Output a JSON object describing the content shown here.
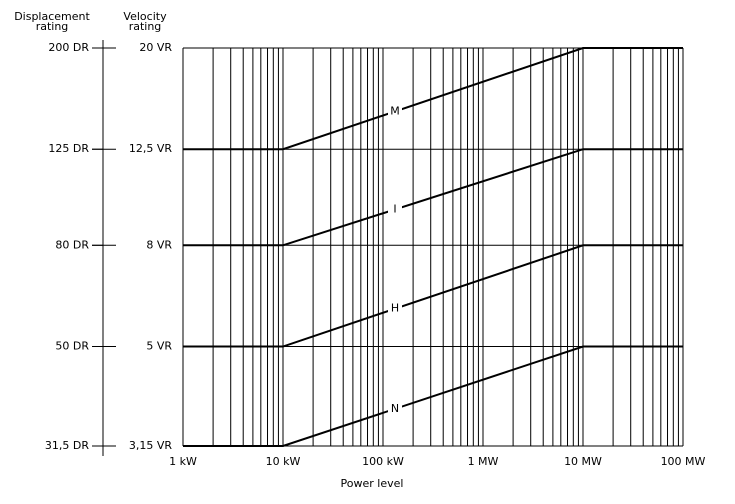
{
  "chart_data": {
    "type": "line",
    "xlabel": "Power level",
    "ylabel": "Velocity rating",
    "y2label": "Displacement rating",
    "xscale": "log",
    "yscale": "log",
    "xlim": [
      1,
      100000
    ],
    "xticks": [
      {
        "value": 1,
        "label": "1 kW"
      },
      {
        "value": 10,
        "label": "10 kW"
      },
      {
        "value": 100,
        "label": "100 kW"
      },
      {
        "value": 1000,
        "label": "1 MW"
      },
      {
        "value": 10000,
        "label": "10 MW"
      },
      {
        "value": 100000,
        "label": "100 MW"
      }
    ],
    "ylim": [
      3.15,
      20
    ],
    "yticks": [
      {
        "value": 3.15,
        "label": "3,15 VR"
      },
      {
        "value": 5,
        "label": "5 VR"
      },
      {
        "value": 8,
        "label": "8 VR"
      },
      {
        "value": 12.5,
        "label": "12,5 VR"
      },
      {
        "value": 20,
        "label": "20 VR"
      }
    ],
    "y2lim": [
      31.5,
      200
    ],
    "y2ticks": [
      {
        "value": 31.5,
        "label": "31,5 DR"
      },
      {
        "value": 50,
        "label": "50 DR"
      },
      {
        "value": 80,
        "label": "80 DR"
      },
      {
        "value": 125,
        "label": "125 DR"
      },
      {
        "value": 200,
        "label": "200 DR"
      }
    ],
    "grid": true,
    "minor_grid": true,
    "x": [
      1,
      10,
      10000,
      100000
    ],
    "series": [
      {
        "name": "N",
        "color": "#000000",
        "values": [
          3.15,
          3.15,
          5,
          5
        ]
      },
      {
        "name": "H",
        "color": "#000000",
        "values": [
          5,
          5,
          8,
          8
        ]
      },
      {
        "name": "I",
        "color": "#000000",
        "values": [
          8,
          8,
          12.5,
          12.5
        ]
      },
      {
        "name": "M",
        "color": "#000000",
        "values": [
          12.5,
          12.5,
          20,
          20
        ]
      }
    ]
  }
}
